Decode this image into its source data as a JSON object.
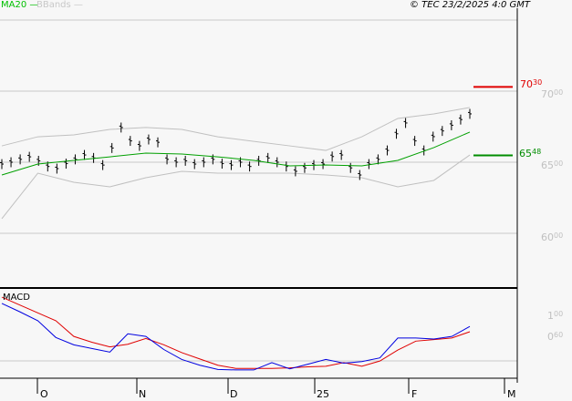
{
  "legend": {
    "ma": "MA20",
    "bbands": "BBands"
  },
  "copyright": "© TEC 23/2/2025 4:0 GMT",
  "colors": {
    "bars": "#000000",
    "ma": "#00a000",
    "bbands": "#c0c0c0",
    "resistance": "#e00000",
    "support": "#008c00",
    "macd": "#0000e0",
    "signal": "#e00000",
    "grid": "#c8c8c8",
    "axis_label": "#c0c0c0"
  },
  "markers": {
    "resistance": {
      "int": "70",
      "dec": "30",
      "value": 7030
    },
    "support": {
      "int": "65",
      "dec": "48",
      "value": 6548
    }
  },
  "price_axis": [
    {
      "int": "70",
      "dec": "00",
      "value": 7000
    },
    {
      "int": "65",
      "dec": "00",
      "value": 6500
    },
    {
      "int": "60",
      "dec": "00",
      "value": 6000
    }
  ],
  "macd_axis": [
    {
      "int": "1",
      "dec": "00",
      "value": 1.0
    },
    {
      "int": "0",
      "dec": "60",
      "value": 0.6
    }
  ],
  "macd_label": "MACD",
  "months": [
    "O",
    "N",
    "D",
    "25",
    "F",
    "M"
  ],
  "chart_data": [
    {
      "type": "ohlc-bar",
      "ylim": [
        5650,
        7400
      ],
      "close": [
        6487,
        6500,
        6520,
        6538,
        6510,
        6470,
        6455,
        6490,
        6520,
        6551,
        6530,
        6480,
        6600,
        6744,
        6650,
        6615,
        6660,
        6640,
        6520,
        6500,
        6510,
        6487,
        6500,
        6520,
        6490,
        6480,
        6500,
        6470,
        6510,
        6530,
        6500,
        6470,
        6436,
        6460,
        6480,
        6487,
        6540,
        6551,
        6460,
        6410,
        6487,
        6520,
        6583,
        6700,
        6776,
        6650,
        6583,
        6680,
        6720,
        6760,
        6800,
        6840
      ],
      "ma20": [
        6410,
        6487,
        6513,
        6538,
        6564,
        6558,
        6538,
        6513,
        6474,
        6481,
        6474,
        6513,
        6603,
        6712
      ],
      "bb_upper": [
        6615,
        6679,
        6692,
        6731,
        6744,
        6731,
        6679,
        6647,
        6615,
        6583,
        6679,
        6808,
        6840,
        6885
      ],
      "bb_lower": [
        6103,
        6423,
        6359,
        6327,
        6391,
        6436,
        6423,
        6423,
        6423,
        6410,
        6391,
        6327,
        6372,
        6551
      ]
    },
    {
      "type": "line",
      "title": "MACD",
      "series": [
        {
          "values": [
            1.21,
            1.05,
            0.88,
            0.56,
            0.42,
            0.35,
            0.28,
            0.63,
            0.58,
            0.33,
            0.14,
            0.03,
            -0.05,
            -0.06,
            -0.06,
            0.08,
            -0.04,
            0.05,
            0.14,
            0.07,
            0.1,
            0.17,
            0.55,
            0.55,
            0.53,
            0.58,
            0.77
          ]
        },
        {
          "values": [
            1.33,
            1.18,
            1.03,
            0.88,
            0.58,
            0.47,
            0.38,
            0.43,
            0.54,
            0.42,
            0.27,
            0.15,
            0.03,
            -0.03,
            -0.03,
            -0.03,
            -0.02,
            0.0,
            0.01,
            0.08,
            0.01,
            0.11,
            0.32,
            0.49,
            0.52,
            0.55,
            0.67
          ]
        }
      ]
    }
  ]
}
